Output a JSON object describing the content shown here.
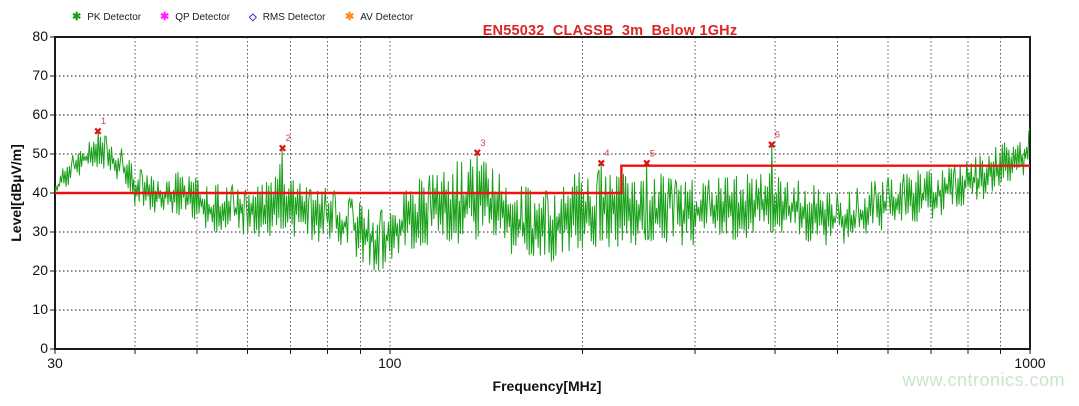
{
  "legend": {
    "items": [
      {
        "id": "pk",
        "label": "PK Detector",
        "color": "#18A018",
        "symbol": "✱"
      },
      {
        "id": "qp",
        "label": "QP Detector",
        "color": "#FF22FF",
        "symbol": "✱"
      },
      {
        "id": "rms",
        "label": "RMS Detector",
        "color": "#2233BB",
        "symbol": "◇"
      },
      {
        "id": "av",
        "label": "AV Detector",
        "color": "#FF8A1E",
        "symbol": "✱"
      }
    ]
  },
  "title": {
    "text": "EN55032_CLASSB_3m_Below 1GHz",
    "color": "#E02222"
  },
  "watermark": {
    "text": "www.cntronics.com",
    "color": "#C9E6C9"
  },
  "chart_data": {
    "type": "line",
    "title": "EN55032_CLASSB_3m_Below 1GHz",
    "xlabel": "Frequency[MHz]",
    "ylabel": "Level[dBµV/m]",
    "x_scale": "log",
    "xlim": [
      30,
      1000
    ],
    "ylim": [
      0,
      80
    ],
    "y_ticks": [
      0,
      10,
      20,
      30,
      40,
      50,
      60,
      70,
      80
    ],
    "x_labeled_ticks": [
      30,
      100,
      1000
    ],
    "x_gridlines": [
      40,
      50,
      60,
      70,
      80,
      90,
      100,
      200,
      300,
      400,
      500,
      600,
      700,
      800,
      900
    ],
    "grid": "dotted",
    "legend_entries": [
      "PK Detector",
      "QP Detector",
      "RMS Detector",
      "AV Detector"
    ],
    "series": [
      {
        "name": "PK Detector",
        "color": "#18A018",
        "style": "noisy-emi-scan",
        "envelope_f_lo_hi": [
          [
            30,
            38,
            44
          ],
          [
            32,
            43,
            50
          ],
          [
            34,
            46,
            54
          ],
          [
            36,
            46,
            55
          ],
          [
            38,
            42,
            52
          ],
          [
            40,
            36,
            47
          ],
          [
            44,
            34,
            44
          ],
          [
            48,
            33,
            46
          ],
          [
            52,
            30,
            42
          ],
          [
            56,
            29,
            43
          ],
          [
            60,
            29,
            41
          ],
          [
            64,
            28,
            43
          ],
          [
            68,
            29,
            49
          ],
          [
            72,
            28,
            43
          ],
          [
            76,
            27,
            41
          ],
          [
            80,
            26,
            42
          ],
          [
            85,
            24,
            40
          ],
          [
            90,
            22,
            38
          ],
          [
            95,
            19,
            35
          ],
          [
            100,
            21,
            37
          ],
          [
            107,
            23,
            42
          ],
          [
            114,
            25,
            45
          ],
          [
            122,
            26,
            46
          ],
          [
            130,
            26,
            49
          ],
          [
            137,
            27,
            49
          ],
          [
            145,
            26,
            47
          ],
          [
            155,
            23,
            45
          ],
          [
            165,
            19,
            42
          ],
          [
            175,
            19,
            41
          ],
          [
            185,
            22,
            43
          ],
          [
            195,
            24,
            45
          ],
          [
            205,
            25,
            46
          ],
          [
            214,
            26,
            46
          ],
          [
            225,
            25,
            45
          ],
          [
            240,
            26,
            45
          ],
          [
            252,
            26,
            45
          ],
          [
            265,
            26,
            45
          ],
          [
            280,
            26,
            44
          ],
          [
            300,
            26,
            44
          ],
          [
            320,
            27,
            44
          ],
          [
            345,
            27,
            45
          ],
          [
            370,
            28,
            45
          ],
          [
            395,
            28,
            45
          ],
          [
            420,
            28,
            44
          ],
          [
            450,
            27,
            43
          ],
          [
            480,
            26,
            41
          ],
          [
            510,
            26,
            40
          ],
          [
            540,
            27,
            42
          ],
          [
            580,
            29,
            44
          ],
          [
            620,
            31,
            45
          ],
          [
            660,
            32,
            46
          ],
          [
            700,
            33,
            46
          ],
          [
            750,
            34,
            47
          ],
          [
            800,
            36,
            48.5
          ],
          [
            850,
            38,
            50.5
          ],
          [
            900,
            40,
            52.5
          ],
          [
            950,
            42,
            54.5
          ],
          [
            1000,
            44,
            57
          ]
        ]
      }
    ],
    "limit_line": {
      "name": "EN55032 Class B 3m limit",
      "color": "#EE1111",
      "points": [
        [
          30,
          40
        ],
        [
          230,
          40
        ],
        [
          230,
          47
        ],
        [
          1000,
          47
        ]
      ]
    },
    "markers": {
      "color": "#DD1515",
      "items": [
        {
          "n": "1",
          "freq": 35,
          "level": 55.9
        },
        {
          "n": "2",
          "freq": 68,
          "level": 51.5
        },
        {
          "n": "3",
          "freq": 137,
          "level": 50.3
        },
        {
          "n": "4",
          "freq": 214,
          "level": 47.7
        },
        {
          "n": "5",
          "freq": 252,
          "level": 47.6
        },
        {
          "n": "6",
          "freq": 395,
          "level": 52.4
        }
      ]
    }
  }
}
